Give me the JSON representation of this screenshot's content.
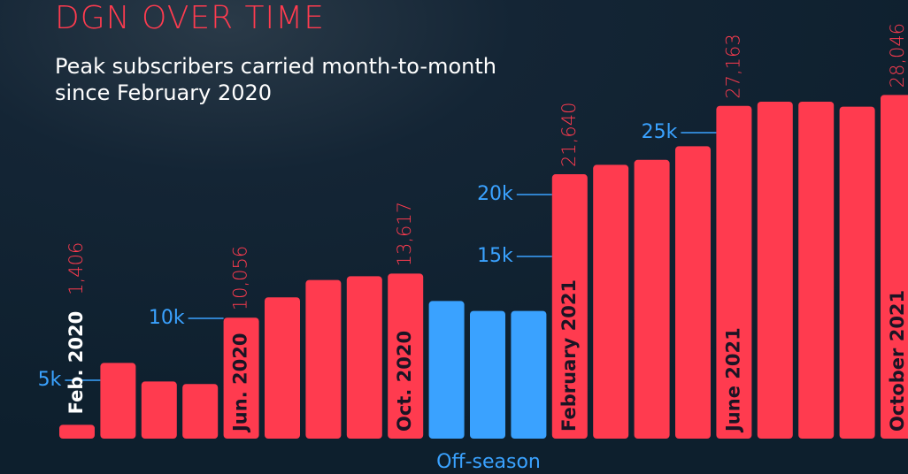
{
  "chart_data": {
    "type": "bar",
    "title": "DGN OVER TIME",
    "subtitle": [
      "Peak subscribers carried month-to-month",
      "since February 2020"
    ],
    "categories": [
      "Feb. 2020",
      null,
      null,
      null,
      "Jun. 2020",
      null,
      null,
      null,
      "Oct. 2020",
      null,
      null,
      null,
      "February 2021",
      null,
      null,
      null,
      "June 2021",
      null,
      null,
      null,
      "October 2021"
    ],
    "values": [
      1406,
      6400,
      4900,
      4700,
      10056,
      11700,
      13100,
      13400,
      13617,
      11400,
      10600,
      10600,
      21640,
      22400,
      22800,
      23900,
      27163,
      27500,
      27500,
      27100,
      28046
    ],
    "value_labels": [
      "1,406",
      null,
      null,
      null,
      "10,056",
      null,
      null,
      null,
      "13,617",
      null,
      null,
      null,
      "21,640",
      null,
      null,
      null,
      "27,163",
      null,
      null,
      null,
      "28,046"
    ],
    "colors": [
      "#ff3b4f",
      "#ff3b4f",
      "#ff3b4f",
      "#ff3b4f",
      "#ff3b4f",
      "#ff3b4f",
      "#ff3b4f",
      "#ff3b4f",
      "#ff3b4f",
      "#3aa2ff",
      "#3aa2ff",
      "#3aa2ff",
      "#ff3b4f",
      "#ff3b4f",
      "#ff3b4f",
      "#ff3b4f",
      "#ff3b4f",
      "#ff3b4f",
      "#ff3b4f",
      "#ff3b4f",
      "#ff3b4f"
    ],
    "annotation": "Off-season",
    "ylim": [
      0,
      35000
    ],
    "yticks": [
      {
        "value": 5000,
        "label": "5k"
      },
      {
        "value": 10000,
        "label": "10k"
      },
      {
        "value": 15000,
        "label": "15k"
      },
      {
        "value": 20000,
        "label": "20k"
      },
      {
        "value": 25000,
        "label": "25k"
      }
    ],
    "grid": false
  }
}
